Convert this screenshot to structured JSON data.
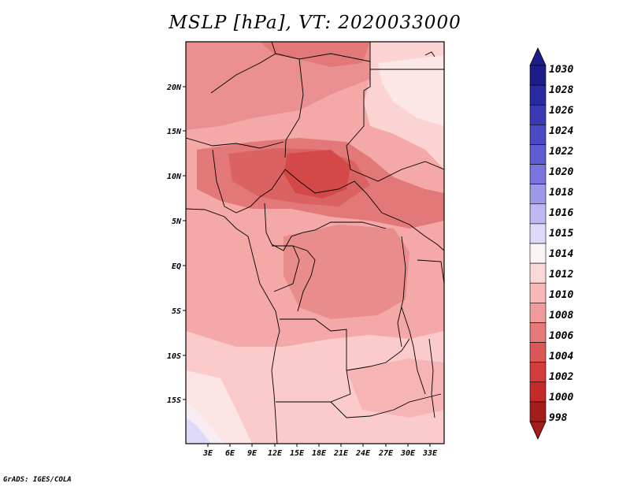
{
  "title": "MSLP [hPa], VT: 2020033000",
  "credit": "GrADS: IGES/COLA",
  "map": {
    "lat_ticks": [
      "20N",
      "15N",
      "10N",
      "5N",
      "EQ",
      "5S",
      "10S",
      "15S"
    ],
    "lon_ticks": [
      "3E",
      "6E",
      "9E",
      "12E",
      "15E",
      "18E",
      "21E",
      "24E",
      "27E",
      "30E",
      "33E"
    ]
  },
  "colorbar": {
    "levels": [
      "1030",
      "1028",
      "1026",
      "1024",
      "1022",
      "1020",
      "1018",
      "1016",
      "1015",
      "1014",
      "1012",
      "1010",
      "1008",
      "1006",
      "1004",
      "1002",
      "1000",
      "998"
    ],
    "colors": [
      "#1c1c8a",
      "#2a2aa0",
      "#3a3ab5",
      "#4a4ac4",
      "#5e5ed2",
      "#7a74de",
      "#9d98e8",
      "#bdbaf2",
      "#dcdaf8",
      "#fbf4f4",
      "#fdd8d8",
      "#f9b8b8",
      "#f09a9a",
      "#e67a7a",
      "#dc5858",
      "#d43c3c",
      "#c42a2a",
      "#a51c1c"
    ],
    "top_arrow_color": "#1c1c8a",
    "bottom_arrow_color": "#a51c1c"
  }
}
